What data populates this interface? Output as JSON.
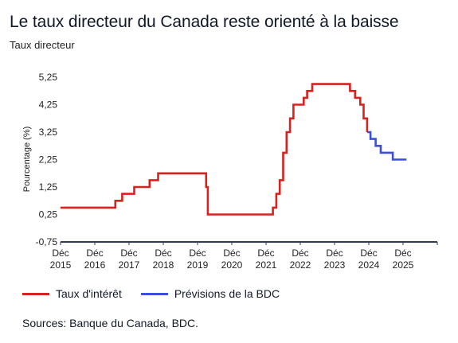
{
  "title": "Le taux directeur du Canada reste orienté à la baisse",
  "subtitle": "Taux directeur",
  "legend": {
    "actual": "Taux d'intérêt",
    "forecast": "Prévisions de la BDC"
  },
  "source": "Sources: Banque du Canada, BDC.",
  "colors": {
    "actual": "#d9211e",
    "forecast": "#3b4fdb",
    "axis": "#2f3b58"
  },
  "chart_data": {
    "type": "line",
    "ylabel": "Pourcentage (%)",
    "ylim": [
      -0.75,
      5.25
    ],
    "yticks": [
      5.25,
      4.25,
      3.25,
      2.25,
      1.25,
      0.25,
      -0.75
    ],
    "ytick_labels": [
      "5,25",
      "4,25",
      "3,25",
      "2,25",
      "1,25",
      "0,25",
      "-0,75"
    ],
    "x_unit": "year",
    "xlim": [
      2015.0,
      2026.0
    ],
    "xticks": [
      {
        "x": 2015.0,
        "l1": "Déc",
        "l2": "2015"
      },
      {
        "x": 2016.0,
        "l1": "Déc",
        "l2": "2016"
      },
      {
        "x": 2017.0,
        "l1": "Déc",
        "l2": "2017"
      },
      {
        "x": 2018.0,
        "l1": "Déc",
        "l2": "2018"
      },
      {
        "x": 2019.0,
        "l1": "Déc",
        "l2": "2019"
      },
      {
        "x": 2020.0,
        "l1": "Déc",
        "l2": "2020"
      },
      {
        "x": 2021.0,
        "l1": "Déc",
        "l2": "2021"
      },
      {
        "x": 2022.0,
        "l1": "Déc",
        "l2": "2022"
      },
      {
        "x": 2023.0,
        "l1": "Déc",
        "l2": "2023"
      },
      {
        "x": 2024.0,
        "l1": "Déc",
        "l2": "2024"
      },
      {
        "x": 2025.0,
        "l1": "Déc",
        "l2": "2025"
      }
    ],
    "series": [
      {
        "key": "actual",
        "points": [
          [
            2015.0,
            0.5
          ],
          [
            2016.6,
            0.5
          ],
          [
            2016.6,
            0.75
          ],
          [
            2016.8,
            0.75
          ],
          [
            2016.8,
            1.0
          ],
          [
            2017.15,
            1.0
          ],
          [
            2017.15,
            1.25
          ],
          [
            2017.6,
            1.25
          ],
          [
            2017.6,
            1.5
          ],
          [
            2017.85,
            1.5
          ],
          [
            2017.85,
            1.75
          ],
          [
            2019.25,
            1.75
          ],
          [
            2019.25,
            1.25
          ],
          [
            2019.3,
            1.25
          ],
          [
            2019.3,
            0.25
          ],
          [
            2021.2,
            0.25
          ],
          [
            2021.2,
            0.5
          ],
          [
            2021.3,
            0.5
          ],
          [
            2021.3,
            1.0
          ],
          [
            2021.4,
            1.0
          ],
          [
            2021.4,
            1.5
          ],
          [
            2021.5,
            1.5
          ],
          [
            2021.5,
            2.5
          ],
          [
            2021.6,
            2.5
          ],
          [
            2021.6,
            3.25
          ],
          [
            2021.7,
            3.25
          ],
          [
            2021.7,
            3.75
          ],
          [
            2021.8,
            3.75
          ],
          [
            2021.8,
            4.25
          ],
          [
            2022.1,
            4.25
          ],
          [
            2022.1,
            4.5
          ],
          [
            2022.2,
            4.5
          ],
          [
            2022.2,
            4.75
          ],
          [
            2022.35,
            4.75
          ],
          [
            2022.35,
            5.0
          ],
          [
            2023.45,
            5.0
          ],
          [
            2023.45,
            4.75
          ],
          [
            2023.6,
            4.75
          ],
          [
            2023.6,
            4.5
          ],
          [
            2023.75,
            4.5
          ],
          [
            2023.75,
            4.25
          ],
          [
            2023.85,
            4.25
          ],
          [
            2023.85,
            3.75
          ],
          [
            2023.95,
            3.75
          ],
          [
            2023.95,
            3.25
          ]
        ]
      },
      {
        "key": "forecast",
        "points": [
          [
            2023.95,
            3.25
          ],
          [
            2024.05,
            3.25
          ],
          [
            2024.05,
            3.0
          ],
          [
            2024.2,
            3.0
          ],
          [
            2024.2,
            2.75
          ],
          [
            2024.35,
            2.75
          ],
          [
            2024.35,
            2.5
          ],
          [
            2024.7,
            2.5
          ],
          [
            2024.7,
            2.25
          ],
          [
            2025.1,
            2.25
          ]
        ]
      }
    ]
  }
}
